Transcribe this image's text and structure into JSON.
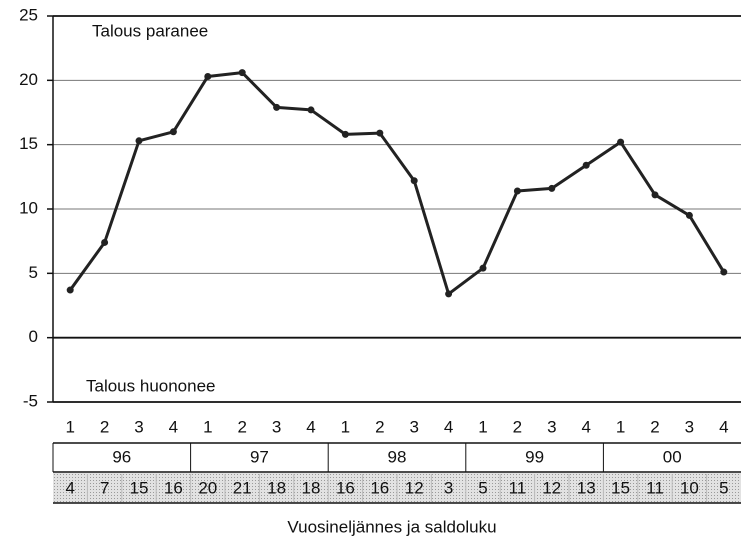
{
  "chart_data": {
    "type": "line",
    "categories": [
      "1",
      "2",
      "3",
      "4",
      "1",
      "2",
      "3",
      "4",
      "1",
      "2",
      "3",
      "4",
      "1",
      "2",
      "3",
      "4",
      "1",
      "2",
      "3",
      "4"
    ],
    "groups": [
      "96",
      "97",
      "98",
      "99",
      "00"
    ],
    "values": [
      3.7,
      7.4,
      15.3,
      16.0,
      20.3,
      20.6,
      17.9,
      17.7,
      15.8,
      15.9,
      12.2,
      3.4,
      5.4,
      11.4,
      11.6,
      13.4,
      15.2,
      11.1,
      9.5,
      5.1
    ],
    "value_labels": [
      "4",
      "7",
      "15",
      "16",
      "20",
      "21",
      "18",
      "18",
      "16",
      "16",
      "12",
      "3",
      "5",
      "11",
      "12",
      "13",
      "15",
      "11",
      "10",
      "5"
    ],
    "color": "#222222",
    "ylim": [
      -5,
      25
    ],
    "yticks": [
      -5,
      0,
      5,
      10,
      15,
      20,
      25
    ],
    "grid": true,
    "annotations": [
      "Talous paranee",
      "Talous huononee"
    ],
    "xlabel": "Vuosineljännes ja saldoluku"
  }
}
